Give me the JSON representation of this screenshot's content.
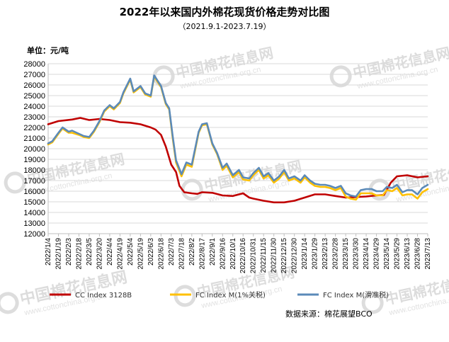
{
  "chart_data": {
    "type": "line",
    "title": "2022年以来国内外棉花现货价格走势对比图",
    "subtitle": "（2021.9.1-2023.7.19）",
    "unit_label": "单位：元/吨",
    "source_label": "数据来源：棉花展望BCO",
    "ylim": [
      12000,
      28000
    ],
    "yticks": [
      12000,
      13000,
      14000,
      15000,
      16000,
      17000,
      18000,
      19000,
      20000,
      21000,
      22000,
      23000,
      24000,
      25000,
      26000,
      27000,
      28000
    ],
    "xlim": [
      "2022-01-04",
      "2023-07-13"
    ],
    "xticks": [
      "2022/1/4",
      "2022/1/19",
      "2022/2/3",
      "2022/2/18",
      "2022/3/5",
      "2022/3/20",
      "2022/4/4",
      "2022/4/19",
      "2022/5/4",
      "2022/5/19",
      "2022/6/3",
      "2022/6/18",
      "2022/7/3",
      "2022/7/18",
      "2022/8/2",
      "2022/8/17",
      "2022/9/1",
      "2022/9/16",
      "2022/10/1",
      "2022/10/16",
      "2022/10/31",
      "2022/11/15",
      "2022/11/30",
      "2022/12/15",
      "2022/12/30",
      "2023/1/14",
      "2023/1/29",
      "2023/2/13",
      "2023/2/28",
      "2023/3/15",
      "2023/3/30",
      "2023/4/14",
      "2023/4/29",
      "2023/5/14",
      "2023/5/29",
      "2023/6/13",
      "2023/6/28",
      "2023/7/13"
    ],
    "grid": true,
    "legend_position": "bottom",
    "watermark": {
      "brand": "中国棉花信息网",
      "url": "www.cottonchina.org.cn"
    },
    "series": [
      {
        "name": "CC Index 3128B",
        "color": "#c00000",
        "points": [
          [
            "2022-01-04",
            22300
          ],
          [
            "2022-01-19",
            22600
          ],
          [
            "2022-02-08",
            22750
          ],
          [
            "2022-02-20",
            22900
          ],
          [
            "2022-03-05",
            22700
          ],
          [
            "2022-03-20",
            22800
          ],
          [
            "2022-04-04",
            22700
          ],
          [
            "2022-04-19",
            22500
          ],
          [
            "2022-05-04",
            22450
          ],
          [
            "2022-05-19",
            22300
          ],
          [
            "2022-06-03",
            22000
          ],
          [
            "2022-06-10",
            21800
          ],
          [
            "2022-06-18",
            21300
          ],
          [
            "2022-06-25",
            20200
          ],
          [
            "2022-07-03",
            18500
          ],
          [
            "2022-07-10",
            17800
          ],
          [
            "2022-07-15",
            16500
          ],
          [
            "2022-07-22",
            15900
          ],
          [
            "2022-08-02",
            15800
          ],
          [
            "2022-08-10",
            15750
          ],
          [
            "2022-08-17",
            15900
          ],
          [
            "2022-09-01",
            15850
          ],
          [
            "2022-09-16",
            15600
          ],
          [
            "2022-10-01",
            15550
          ],
          [
            "2022-10-10",
            15700
          ],
          [
            "2022-10-16",
            15800
          ],
          [
            "2022-10-25",
            15400
          ],
          [
            "2022-10-31",
            15300
          ],
          [
            "2022-11-15",
            15100
          ],
          [
            "2022-11-30",
            14950
          ],
          [
            "2022-12-15",
            14950
          ],
          [
            "2022-12-30",
            15100
          ],
          [
            "2023-01-14",
            15400
          ],
          [
            "2023-01-29",
            15700
          ],
          [
            "2023-02-13",
            15700
          ],
          [
            "2023-02-28",
            15550
          ],
          [
            "2023-03-15",
            15400
          ],
          [
            "2023-03-30",
            15450
          ],
          [
            "2023-04-14",
            15500
          ],
          [
            "2023-04-29",
            15600
          ],
          [
            "2023-05-10",
            15650
          ],
          [
            "2023-05-20",
            16800
          ],
          [
            "2023-05-29",
            17400
          ],
          [
            "2023-06-13",
            17500
          ],
          [
            "2023-06-28",
            17300
          ],
          [
            "2023-07-13",
            17400
          ]
        ]
      },
      {
        "name": "FC Index M(1%关税)",
        "color": "#ffc000",
        "points": [
          [
            "2022-01-04",
            20400
          ],
          [
            "2022-01-10",
            20600
          ],
          [
            "2022-01-19",
            21400
          ],
          [
            "2022-01-25",
            21900
          ],
          [
            "2022-02-03",
            21500
          ],
          [
            "2022-02-08",
            21500
          ],
          [
            "2022-02-18",
            21300
          ],
          [
            "2022-02-25",
            21100
          ],
          [
            "2022-03-05",
            21000
          ],
          [
            "2022-03-12",
            21600
          ],
          [
            "2022-03-20",
            22500
          ],
          [
            "2022-03-27",
            23500
          ],
          [
            "2022-04-04",
            24000
          ],
          [
            "2022-04-10",
            23700
          ],
          [
            "2022-04-19",
            24300
          ],
          [
            "2022-04-24",
            25200
          ],
          [
            "2022-05-04",
            26500
          ],
          [
            "2022-05-09",
            25300
          ],
          [
            "2022-05-19",
            25800
          ],
          [
            "2022-05-26",
            25100
          ],
          [
            "2022-06-03",
            24900
          ],
          [
            "2022-06-08",
            26800
          ],
          [
            "2022-06-14",
            26200
          ],
          [
            "2022-06-18",
            25800
          ],
          [
            "2022-06-25",
            24200
          ],
          [
            "2022-06-30",
            23700
          ],
          [
            "2022-07-05",
            21000
          ],
          [
            "2022-07-10",
            18700
          ],
          [
            "2022-07-18",
            17400
          ],
          [
            "2022-07-25",
            18500
          ],
          [
            "2022-08-02",
            18300
          ],
          [
            "2022-08-12",
            21500
          ],
          [
            "2022-08-17",
            22200
          ],
          [
            "2022-08-24",
            22300
          ],
          [
            "2022-09-01",
            20400
          ],
          [
            "2022-09-08",
            19500
          ],
          [
            "2022-09-16",
            18000
          ],
          [
            "2022-09-22",
            18400
          ],
          [
            "2022-10-01",
            17300
          ],
          [
            "2022-10-10",
            17800
          ],
          [
            "2022-10-16",
            17100
          ],
          [
            "2022-10-25",
            17000
          ],
          [
            "2022-10-31",
            17500
          ],
          [
            "2022-11-08",
            18000
          ],
          [
            "2022-11-15",
            17200
          ],
          [
            "2022-11-22",
            17500
          ],
          [
            "2022-11-30",
            16800
          ],
          [
            "2022-12-08",
            17200
          ],
          [
            "2022-12-15",
            17800
          ],
          [
            "2022-12-22",
            17000
          ],
          [
            "2022-12-30",
            17200
          ],
          [
            "2023-01-08",
            16800
          ],
          [
            "2023-01-14",
            17300
          ],
          [
            "2023-01-22",
            16800
          ],
          [
            "2023-01-29",
            16500
          ],
          [
            "2023-02-06",
            16400
          ],
          [
            "2023-02-13",
            16400
          ],
          [
            "2023-02-20",
            16300
          ],
          [
            "2023-02-28",
            16100
          ],
          [
            "2023-03-08",
            16300
          ],
          [
            "2023-03-15",
            15500
          ],
          [
            "2023-03-22",
            15300
          ],
          [
            "2023-03-30",
            15200
          ],
          [
            "2023-04-06",
            15800
          ],
          [
            "2023-04-14",
            15800
          ],
          [
            "2023-04-22",
            15800
          ],
          [
            "2023-04-29",
            15600
          ],
          [
            "2023-05-08",
            15600
          ],
          [
            "2023-05-14",
            16100
          ],
          [
            "2023-05-22",
            16000
          ],
          [
            "2023-05-29",
            16300
          ],
          [
            "2023-06-06",
            15600
          ],
          [
            "2023-06-13",
            15700
          ],
          [
            "2023-06-20",
            15700
          ],
          [
            "2023-06-28",
            15300
          ],
          [
            "2023-07-05",
            15900
          ],
          [
            "2023-07-13",
            16200
          ]
        ]
      },
      {
        "name": "FC Index M(滑准税)",
        "color": "#5b8ab8",
        "points": [
          [
            "2022-01-04",
            20500
          ],
          [
            "2022-01-10",
            20700
          ],
          [
            "2022-01-19",
            21500
          ],
          [
            "2022-01-25",
            22000
          ],
          [
            "2022-02-03",
            21600
          ],
          [
            "2022-02-08",
            21700
          ],
          [
            "2022-02-18",
            21400
          ],
          [
            "2022-02-25",
            21200
          ],
          [
            "2022-03-05",
            21100
          ],
          [
            "2022-03-12",
            21700
          ],
          [
            "2022-03-20",
            22600
          ],
          [
            "2022-03-27",
            23600
          ],
          [
            "2022-04-04",
            24100
          ],
          [
            "2022-04-10",
            23800
          ],
          [
            "2022-04-19",
            24400
          ],
          [
            "2022-04-24",
            25300
          ],
          [
            "2022-05-04",
            26600
          ],
          [
            "2022-05-09",
            25400
          ],
          [
            "2022-05-19",
            25900
          ],
          [
            "2022-05-26",
            25200
          ],
          [
            "2022-06-03",
            25000
          ],
          [
            "2022-06-08",
            26900
          ],
          [
            "2022-06-14",
            26300
          ],
          [
            "2022-06-18",
            25900
          ],
          [
            "2022-06-25",
            24300
          ],
          [
            "2022-06-30",
            23800
          ],
          [
            "2022-07-05",
            21200
          ],
          [
            "2022-07-10",
            18900
          ],
          [
            "2022-07-18",
            17600
          ],
          [
            "2022-07-25",
            18700
          ],
          [
            "2022-08-02",
            18500
          ],
          [
            "2022-08-12",
            21600
          ],
          [
            "2022-08-17",
            22300
          ],
          [
            "2022-08-24",
            22400
          ],
          [
            "2022-09-01",
            20500
          ],
          [
            "2022-09-08",
            19600
          ],
          [
            "2022-09-16",
            18200
          ],
          [
            "2022-09-22",
            18600
          ],
          [
            "2022-10-01",
            17500
          ],
          [
            "2022-10-10",
            18000
          ],
          [
            "2022-10-16",
            17300
          ],
          [
            "2022-10-25",
            17200
          ],
          [
            "2022-10-31",
            17700
          ],
          [
            "2022-11-08",
            18200
          ],
          [
            "2022-11-15",
            17400
          ],
          [
            "2022-11-22",
            17700
          ],
          [
            "2022-11-30",
            17000
          ],
          [
            "2022-12-08",
            17400
          ],
          [
            "2022-12-15",
            18000
          ],
          [
            "2022-12-22",
            17200
          ],
          [
            "2022-12-30",
            17400
          ],
          [
            "2023-01-08",
            17000
          ],
          [
            "2023-01-14",
            17500
          ],
          [
            "2023-01-22",
            17000
          ],
          [
            "2023-01-29",
            16700
          ],
          [
            "2023-02-06",
            16600
          ],
          [
            "2023-02-13",
            16600
          ],
          [
            "2023-02-20",
            16500
          ],
          [
            "2023-02-28",
            16300
          ],
          [
            "2023-03-08",
            16500
          ],
          [
            "2023-03-15",
            15800
          ],
          [
            "2023-03-22",
            15600
          ],
          [
            "2023-03-30",
            15500
          ],
          [
            "2023-04-06",
            16100
          ],
          [
            "2023-04-14",
            16200
          ],
          [
            "2023-04-22",
            16200
          ],
          [
            "2023-04-29",
            16000
          ],
          [
            "2023-05-08",
            16000
          ],
          [
            "2023-05-14",
            16400
          ],
          [
            "2023-05-22",
            16300
          ],
          [
            "2023-05-29",
            16600
          ],
          [
            "2023-06-06",
            15900
          ],
          [
            "2023-06-13",
            16100
          ],
          [
            "2023-06-20",
            16100
          ],
          [
            "2023-06-28",
            15700
          ],
          [
            "2023-07-05",
            16300
          ],
          [
            "2023-07-13",
            16600
          ]
        ]
      }
    ]
  }
}
